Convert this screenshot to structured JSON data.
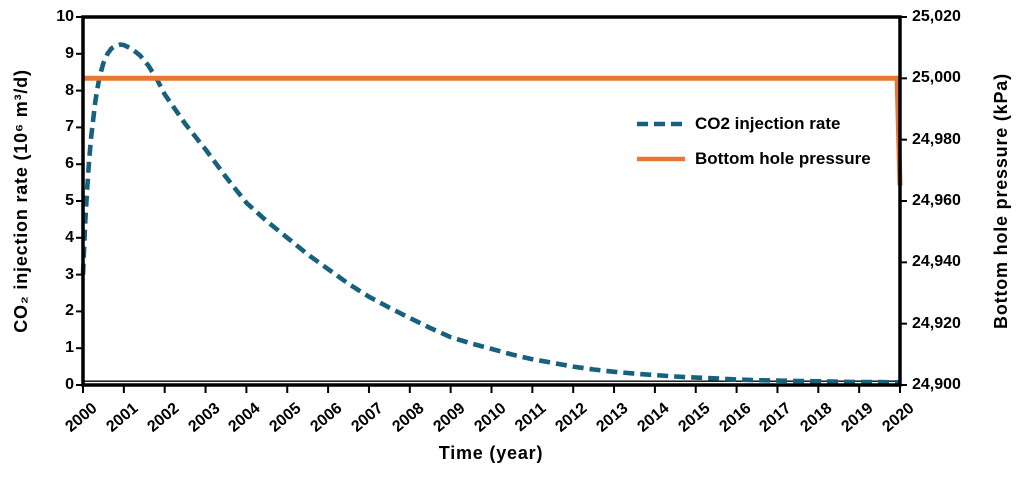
{
  "page": {
    "background": "#ffffff"
  },
  "chart_data": {
    "type": "line",
    "title": "",
    "xlabel": "Time (year)",
    "ylabel_left": "CO₂ injection rate (10⁶ m³/d)",
    "ylabel_right": "Bottom hole pressure (kPa)",
    "grid": false,
    "legend_position": "inside-right",
    "x_range": [
      2000,
      2020
    ],
    "y_left_range": [
      0,
      10
    ],
    "y_right_range": [
      24900,
      25020
    ],
    "x_ticks": [
      "2000",
      "2001",
      "2002",
      "2003",
      "2004",
      "2005",
      "2006",
      "2007",
      "2008",
      "2009",
      "2010",
      "2011",
      "2012",
      "2013",
      "2014",
      "2015",
      "2016",
      "2017",
      "2018",
      "2019",
      "2020"
    ],
    "y_left_ticks": [
      "0",
      "1",
      "2",
      "3",
      "4",
      "5",
      "6",
      "7",
      "8",
      "9",
      "10"
    ],
    "y_right_ticks": [
      "24,900",
      "24,920",
      "24,940",
      "24,960",
      "24,980",
      "25,000",
      "25,020"
    ],
    "axis_color": "#000000",
    "series": [
      {
        "name": "CO2 injection rate",
        "axis": "left",
        "style": "dashed",
        "color": "#17617F",
        "points": [
          [
            2000.0,
            3.0
          ],
          [
            2000.05,
            4.3
          ],
          [
            2000.1,
            5.3
          ],
          [
            2000.15,
            6.1
          ],
          [
            2000.2,
            6.75
          ],
          [
            2000.3,
            7.7
          ],
          [
            2000.4,
            8.35
          ],
          [
            2000.5,
            8.75
          ],
          [
            2000.6,
            9.0
          ],
          [
            2000.7,
            9.15
          ],
          [
            2000.8,
            9.22
          ],
          [
            2000.9,
            9.25
          ],
          [
            2001.0,
            9.24
          ],
          [
            2001.2,
            9.13
          ],
          [
            2001.4,
            8.95
          ],
          [
            2001.6,
            8.68
          ],
          [
            2001.8,
            8.33
          ],
          [
            2002.0,
            7.9
          ],
          [
            2002.25,
            7.5
          ],
          [
            2002.5,
            7.1
          ],
          [
            2002.75,
            6.75
          ],
          [
            2003.0,
            6.4
          ],
          [
            2003.5,
            5.65
          ],
          [
            2004.0,
            4.95
          ],
          [
            2004.5,
            4.45
          ],
          [
            2005.0,
            4.0
          ],
          [
            2005.5,
            3.55
          ],
          [
            2006.0,
            3.15
          ],
          [
            2006.5,
            2.75
          ],
          [
            2007.0,
            2.4
          ],
          [
            2007.5,
            2.1
          ],
          [
            2008.0,
            1.82
          ],
          [
            2008.5,
            1.55
          ],
          [
            2009.0,
            1.3
          ],
          [
            2009.5,
            1.13
          ],
          [
            2010.0,
            0.98
          ],
          [
            2010.5,
            0.83
          ],
          [
            2011.0,
            0.7
          ],
          [
            2011.5,
            0.6
          ],
          [
            2012.0,
            0.5
          ],
          [
            2012.5,
            0.42
          ],
          [
            2013.0,
            0.36
          ],
          [
            2013.5,
            0.31
          ],
          [
            2014.0,
            0.27
          ],
          [
            2014.5,
            0.23
          ],
          [
            2015.0,
            0.2
          ],
          [
            2015.5,
            0.18
          ],
          [
            2016.0,
            0.15
          ],
          [
            2016.5,
            0.13
          ],
          [
            2017.0,
            0.12
          ],
          [
            2017.5,
            0.11
          ],
          [
            2018.0,
            0.1
          ],
          [
            2018.5,
            0.09
          ],
          [
            2019.0,
            0.08
          ],
          [
            2019.5,
            0.08
          ],
          [
            2020.0,
            0.07
          ]
        ]
      },
      {
        "name": "Bottom hole pressure",
        "axis": "right",
        "style": "solid",
        "color": "#E87634",
        "points": [
          [
            2000.0,
            25000
          ],
          [
            2019.93,
            25000
          ],
          [
            2020.0,
            24965
          ]
        ]
      }
    ]
  }
}
